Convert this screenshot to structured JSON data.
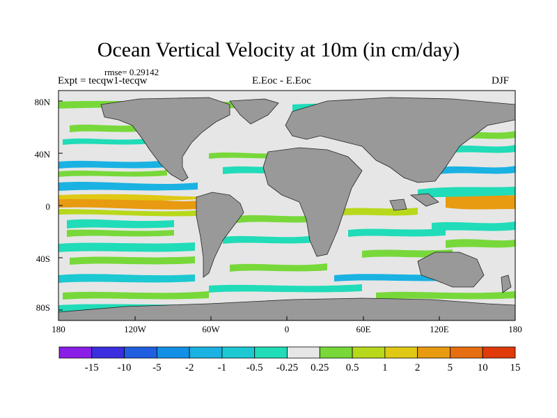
{
  "title": "Ocean Vertical Velocity at 10m (in cm/day)",
  "rmse": "rmse= 0.29142",
  "left_label": "Expt = tecqw1-tecqw",
  "center_label": "E.Eoc - E.Eoc",
  "right_label": "DJF",
  "lat_ticks": [
    "80N",
    "40N",
    "0",
    "40S",
    "80S"
  ],
  "lon_ticks": [
    "180",
    "120W",
    "60W",
    "0",
    "60E",
    "120E",
    "180"
  ],
  "colorbar": {
    "labels": [
      "-15",
      "-10",
      "-5",
      "-2",
      "-1",
      "-0.5",
      "-0.25",
      "0.25",
      "0.5",
      "1",
      "2",
      "5",
      "10",
      "15"
    ],
    "colors": [
      "#8a1ee6",
      "#3a2ee0",
      "#1f5fe0",
      "#148fe6",
      "#1ab2e2",
      "#1cc8d2",
      "#20dcb8",
      "#e6e6e6",
      "#78d83a",
      "#b8d81c",
      "#e0c814",
      "#e89a10",
      "#e66e10",
      "#e03a0a"
    ]
  },
  "colors": {
    "ocean": "#e6e6e6",
    "land": "#999999"
  }
}
